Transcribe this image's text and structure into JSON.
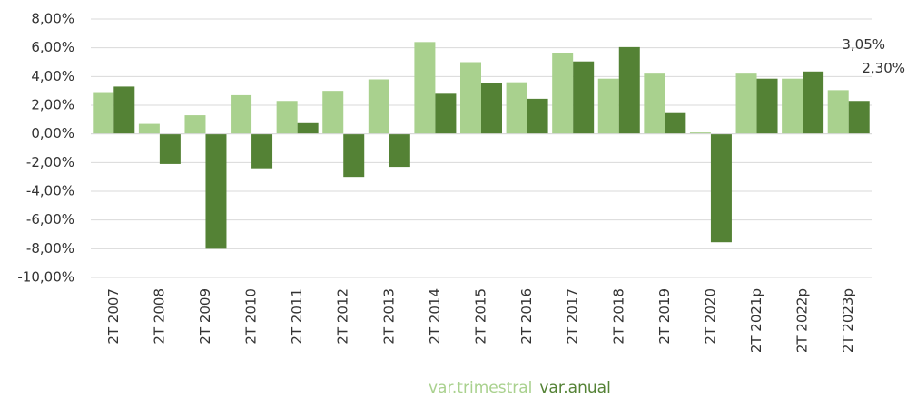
{
  "chart_data": {
    "type": "bar",
    "categories": [
      "2T 2007",
      "2T 2008",
      "2T 2009",
      "2T 2010",
      "2T 2011",
      "2T 2012",
      "2T 2013",
      "2T 2014",
      "2T 2015",
      "2T 2016",
      "2T 2017",
      "2T 2018",
      "2T 2019",
      "2T 2020",
      "2T 2021p",
      "2T 2022p",
      "2T 2023p"
    ],
    "series": [
      {
        "name": "var.trimestral",
        "color": "#a9d18e",
        "values": [
          2.85,
          0.7,
          1.3,
          2.7,
          2.3,
          3.0,
          3.8,
          6.4,
          5.0,
          3.6,
          5.6,
          3.85,
          4.2,
          0.1,
          4.2,
          3.85,
          3.05
        ],
        "value_labels": [
          null,
          null,
          null,
          null,
          null,
          null,
          null,
          null,
          null,
          null,
          null,
          null,
          null,
          null,
          null,
          null,
          "3,05%"
        ]
      },
      {
        "name": "var.anual",
        "color": "#548235",
        "values": [
          3.3,
          -2.1,
          -8.0,
          -2.4,
          0.75,
          -3.0,
          -2.3,
          2.8,
          3.55,
          2.45,
          5.05,
          6.05,
          1.45,
          -7.55,
          3.85,
          4.35,
          2.3
        ],
        "value_labels": [
          null,
          null,
          null,
          null,
          null,
          null,
          null,
          null,
          null,
          null,
          null,
          null,
          null,
          null,
          null,
          null,
          "2,30%"
        ]
      }
    ],
    "ylim": [
      -10,
      8
    ],
    "yticks": [
      {
        "value": -10,
        "label": "-10,00%"
      },
      {
        "value": -8,
        "label": "-8,00%"
      },
      {
        "value": -6,
        "label": "-6,00%"
      },
      {
        "value": -4,
        "label": "-4,00%"
      },
      {
        "value": -2,
        "label": "-2,00%"
      },
      {
        "value": 0,
        "label": "0,00%"
      },
      {
        "value": 2,
        "label": "2,00%"
      },
      {
        "value": 4,
        "label": "4,00%"
      },
      {
        "value": 6,
        "label": "6,00%"
      },
      {
        "value": 8,
        "label": "8,00%"
      }
    ],
    "grid": true,
    "legend": "bottom"
  }
}
